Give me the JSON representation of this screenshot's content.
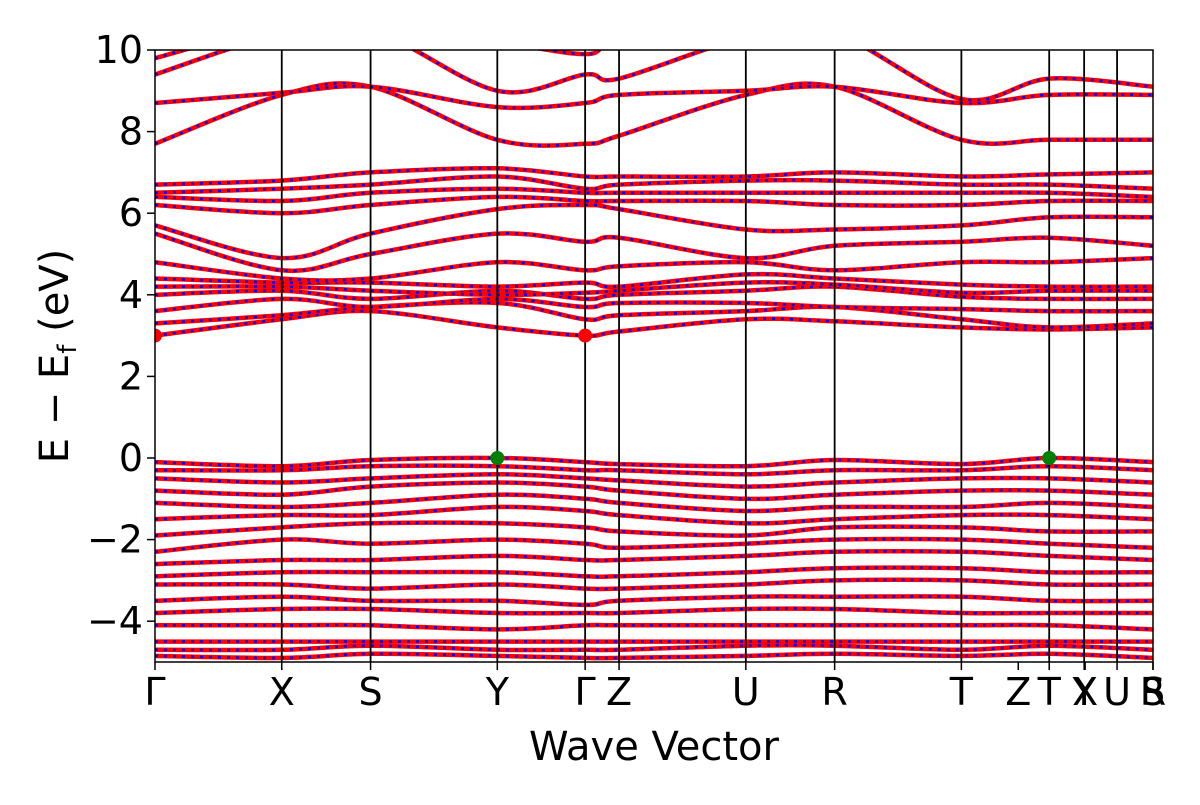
{
  "chart_data": {
    "type": "line",
    "title": "",
    "xlabel": "Wave Vector",
    "ylabel": "E − E",
    "ylabel_subscript": "f",
    "ylabel_unit": " (eV)",
    "ylim": [
      -5,
      10
    ],
    "yticks": [
      {
        "value": 10,
        "label": "10"
      },
      {
        "value": 8,
        "label": "8"
      },
      {
        "value": 6,
        "label": "6"
      },
      {
        "value": 4,
        "label": "4"
      },
      {
        "value": 2,
        "label": "2"
      },
      {
        "value": 0,
        "label": "0"
      },
      {
        "value": -2,
        "label": "−2"
      },
      {
        "value": -4,
        "label": "−4"
      }
    ],
    "grid": false,
    "xlim": [
      0,
      1
    ],
    "kpoints": [
      {
        "label": "Γ",
        "pos": 0.0
      },
      {
        "label": "X",
        "pos": 0.127
      },
      {
        "label": "S",
        "pos": 0.216
      },
      {
        "label": "Y",
        "pos": 0.343
      },
      {
        "label": "Γ",
        "pos": 0.431
      },
      {
        "label": "Z",
        "pos": 0.465
      },
      {
        "label": "U",
        "pos": 0.592
      },
      {
        "label": "R",
        "pos": 0.681
      },
      {
        "label": "T",
        "pos": 0.808
      },
      {
        "label": "Z",
        "pos": 0.865
      },
      {
        "label": "T",
        "pos": 0.896
      },
      {
        "label": "Y",
        "pos": 0.931
      },
      {
        "label": "X",
        "pos": 0.932
      },
      {
        "label": "U",
        "pos": 0.964
      },
      {
        "label": "S",
        "pos": 1.0
      },
      {
        "label": "R",
        "pos": 1.0
      }
    ],
    "tick_lines": [
      0.127,
      0.216,
      0.343,
      0.431,
      0.465,
      0.592,
      0.681,
      0.808,
      0.896,
      0.931,
      0.964
    ],
    "breaks": [
      0.896,
      0.931,
      0.964
    ],
    "band_style": {
      "line_color": "#ff0000",
      "dash_color": "#0000ff"
    },
    "bands_up_anchors": [
      {
        "id": "c1",
        "x": [
          0,
          0.127,
          0.216,
          0.343,
          0.431,
          0.465,
          0.592,
          0.681,
          0.808,
          0.896,
          1.0
        ],
        "y": [
          3.0,
          3.4,
          3.6,
          3.2,
          3.0,
          3.1,
          3.4,
          3.35,
          3.2,
          3.15,
          3.2
        ]
      },
      {
        "id": "c2",
        "x": [
          0,
          0.127,
          0.216,
          0.343,
          0.431,
          0.465,
          0.592,
          0.681,
          0.808,
          0.896,
          1.0
        ],
        "y": [
          3.3,
          3.5,
          3.7,
          3.8,
          3.4,
          3.5,
          3.6,
          3.7,
          3.4,
          3.2,
          3.3
        ]
      },
      {
        "id": "c3",
        "x": [
          0,
          0.127,
          0.216,
          0.343,
          0.431,
          0.465,
          0.592,
          0.681,
          0.808,
          0.896,
          1.0
        ],
        "y": [
          3.6,
          3.9,
          3.7,
          3.9,
          3.7,
          3.8,
          3.8,
          3.7,
          3.65,
          3.6,
          3.6
        ]
      },
      {
        "id": "c4",
        "x": [
          0,
          0.127,
          0.216,
          0.343,
          0.431,
          0.465,
          0.592,
          0.681,
          0.808,
          0.896,
          1.0
        ],
        "y": [
          4.0,
          4.1,
          3.9,
          4.1,
          3.9,
          4.0,
          4.1,
          4.2,
          3.95,
          3.9,
          3.9
        ]
      },
      {
        "id": "c5",
        "x": [
          0,
          0.127,
          0.216,
          0.343,
          0.431,
          0.465,
          0.592,
          0.681,
          0.808,
          0.896,
          1.0
        ],
        "y": [
          4.2,
          4.2,
          4.1,
          4.0,
          4.05,
          4.1,
          4.3,
          4.25,
          4.05,
          4.1,
          4.1
        ]
      },
      {
        "id": "c6",
        "x": [
          0,
          0.127,
          0.216,
          0.343,
          0.431,
          0.465,
          0.592,
          0.681,
          0.808,
          0.896,
          1.0
        ],
        "y": [
          4.4,
          4.3,
          4.3,
          4.2,
          4.3,
          4.2,
          4.5,
          4.4,
          4.25,
          4.2,
          4.2
        ]
      },
      {
        "id": "c7",
        "x": [
          0,
          0.127,
          0.216,
          0.343,
          0.431,
          0.465,
          0.592,
          0.681,
          0.808,
          0.896,
          1.0
        ],
        "y": [
          4.8,
          4.4,
          4.4,
          4.8,
          4.6,
          4.7,
          4.8,
          4.6,
          4.8,
          4.8,
          4.9
        ]
      },
      {
        "id": "c8",
        "x": [
          0,
          0.127,
          0.216,
          0.343,
          0.431,
          0.465,
          0.592,
          0.681,
          0.808,
          0.896,
          1.0
        ],
        "y": [
          5.5,
          4.6,
          5.0,
          5.5,
          5.3,
          5.4,
          4.9,
          5.2,
          5.3,
          5.4,
          5.2
        ]
      },
      {
        "id": "c9",
        "x": [
          0,
          0.127,
          0.216,
          0.343,
          0.431,
          0.465,
          0.592,
          0.681,
          0.808,
          0.896,
          1.0
        ],
        "y": [
          5.7,
          4.9,
          5.5,
          6.1,
          6.2,
          6.1,
          5.6,
          5.6,
          5.7,
          5.9,
          5.9
        ]
      },
      {
        "id": "c10",
        "x": [
          0,
          0.127,
          0.216,
          0.343,
          0.431,
          0.465,
          0.592,
          0.681,
          0.808,
          0.896,
          1.0
        ],
        "y": [
          6.2,
          6.0,
          6.2,
          6.4,
          6.3,
          6.3,
          6.3,
          6.2,
          6.2,
          6.3,
          6.3
        ]
      },
      {
        "id": "c11",
        "x": [
          0,
          0.127,
          0.216,
          0.343,
          0.431,
          0.465,
          0.592,
          0.681,
          0.808,
          0.896,
          1.0
        ],
        "y": [
          6.4,
          6.3,
          6.5,
          6.6,
          6.5,
          6.5,
          6.5,
          6.5,
          6.5,
          6.5,
          6.4
        ]
      },
      {
        "id": "c12",
        "x": [
          0,
          0.127,
          0.216,
          0.343,
          0.431,
          0.465,
          0.592,
          0.681,
          0.808,
          0.896,
          1.0
        ],
        "y": [
          6.5,
          6.6,
          6.7,
          6.9,
          6.6,
          6.7,
          6.8,
          6.8,
          6.7,
          6.7,
          6.6
        ]
      },
      {
        "id": "c13",
        "x": [
          0,
          0.127,
          0.216,
          0.343,
          0.431,
          0.465,
          0.592,
          0.681,
          0.808,
          0.896,
          1.0
        ],
        "y": [
          6.7,
          6.8,
          7.0,
          7.1,
          6.9,
          6.9,
          6.9,
          7.0,
          6.9,
          6.95,
          7.0
        ]
      },
      {
        "id": "c14",
        "x": [
          0,
          0.127,
          0.216,
          0.343,
          0.431,
          0.465,
          0.592,
          0.681,
          0.808,
          0.896,
          1.0
        ],
        "y": [
          7.7,
          8.9,
          9.1,
          7.8,
          7.7,
          7.9,
          8.9,
          9.1,
          7.8,
          7.8,
          7.8
        ]
      },
      {
        "id": "c15",
        "x": [
          0,
          0.127,
          0.216,
          0.343,
          0.431,
          0.465,
          0.592,
          0.681,
          0.808,
          0.896,
          1.0
        ],
        "y": [
          8.7,
          8.95,
          9.1,
          8.6,
          8.7,
          8.9,
          9.0,
          9.1,
          8.7,
          8.9,
          8.9
        ]
      },
      {
        "id": "c16",
        "x": [
          0,
          0.127,
          0.216,
          0.343,
          0.431,
          0.465,
          0.592,
          0.681,
          0.808,
          0.896,
          1.0
        ],
        "y": [
          9.4,
          10.4,
          10.5,
          9.0,
          9.4,
          9.3,
          10.3,
          10.4,
          8.8,
          9.3,
          9.1
        ]
      },
      {
        "id": "c17",
        "x": [
          0,
          0.127,
          0.216,
          0.343,
          0.431,
          0.465,
          0.592,
          0.681,
          0.808,
          0.896,
          1.0
        ],
        "y": [
          9.8,
          10.6,
          10.6,
          10.2,
          9.9,
          10.2,
          10.5,
          10.5,
          10.3,
          10.4,
          10.3
        ]
      }
    ],
    "bands_down_anchors": [
      {
        "id": "v1",
        "x": [
          0,
          0.127,
          0.216,
          0.343,
          0.431,
          0.465,
          0.592,
          0.681,
          0.808,
          0.896,
          1.0
        ],
        "y": [
          -0.1,
          -0.2,
          -0.05,
          0.0,
          -0.1,
          -0.15,
          -0.2,
          -0.05,
          -0.15,
          0.0,
          -0.1
        ]
      },
      {
        "id": "v2",
        "x": [
          0,
          0.127,
          0.216,
          0.343,
          0.431,
          0.465,
          0.592,
          0.681,
          0.808,
          0.896,
          1.0
        ],
        "y": [
          -0.3,
          -0.3,
          -0.2,
          -0.2,
          -0.3,
          -0.3,
          -0.4,
          -0.3,
          -0.3,
          -0.2,
          -0.3
        ]
      },
      {
        "id": "v3",
        "x": [
          0,
          0.127,
          0.216,
          0.343,
          0.431,
          0.465,
          0.592,
          0.681,
          0.808,
          0.896,
          1.0
        ],
        "y": [
          -0.5,
          -0.6,
          -0.5,
          -0.4,
          -0.5,
          -0.55,
          -0.7,
          -0.6,
          -0.5,
          -0.5,
          -0.6
        ]
      },
      {
        "id": "v4",
        "x": [
          0,
          0.127,
          0.216,
          0.343,
          0.431,
          0.465,
          0.592,
          0.681,
          0.808,
          0.896,
          1.0
        ],
        "y": [
          -0.8,
          -0.9,
          -0.7,
          -0.6,
          -0.7,
          -0.8,
          -1.0,
          -0.9,
          -0.8,
          -0.8,
          -0.9
        ]
      },
      {
        "id": "v5",
        "x": [
          0,
          0.127,
          0.216,
          0.343,
          0.431,
          0.465,
          0.592,
          0.681,
          0.808,
          0.896,
          1.0
        ],
        "y": [
          -1.1,
          -1.2,
          -1.1,
          -0.9,
          -1.0,
          -1.1,
          -1.3,
          -1.2,
          -1.2,
          -1.1,
          -1.2
        ]
      },
      {
        "id": "v6",
        "x": [
          0,
          0.127,
          0.216,
          0.343,
          0.431,
          0.465,
          0.592,
          0.681,
          0.808,
          0.896,
          1.0
        ],
        "y": [
          -1.5,
          -1.4,
          -1.4,
          -1.2,
          -1.3,
          -1.4,
          -1.6,
          -1.5,
          -1.4,
          -1.4,
          -1.5
        ]
      },
      {
        "id": "v7",
        "x": [
          0,
          0.127,
          0.216,
          0.343,
          0.431,
          0.465,
          0.592,
          0.681,
          0.808,
          0.896,
          1.0
        ],
        "y": [
          -1.9,
          -1.7,
          -1.6,
          -1.6,
          -1.7,
          -1.8,
          -1.9,
          -1.7,
          -1.7,
          -1.8,
          -1.8
        ]
      },
      {
        "id": "v8",
        "x": [
          0,
          0.127,
          0.216,
          0.343,
          0.431,
          0.465,
          0.592,
          0.681,
          0.808,
          0.896,
          1.0
        ],
        "y": [
          -2.3,
          -2.0,
          -2.1,
          -2.0,
          -2.1,
          -2.2,
          -2.1,
          -2.0,
          -2.0,
          -2.1,
          -2.2
        ]
      },
      {
        "id": "v9",
        "x": [
          0,
          0.127,
          0.216,
          0.343,
          0.431,
          0.465,
          0.592,
          0.681,
          0.808,
          0.896,
          1.0
        ],
        "y": [
          -2.6,
          -2.5,
          -2.5,
          -2.4,
          -2.5,
          -2.5,
          -2.4,
          -2.3,
          -2.3,
          -2.4,
          -2.5
        ]
      },
      {
        "id": "v10",
        "x": [
          0,
          0.127,
          0.216,
          0.343,
          0.431,
          0.465,
          0.592,
          0.681,
          0.808,
          0.896,
          1.0
        ],
        "y": [
          -2.9,
          -2.8,
          -2.8,
          -2.8,
          -2.9,
          -2.9,
          -2.8,
          -2.7,
          -2.7,
          -2.8,
          -2.8
        ]
      },
      {
        "id": "v11",
        "x": [
          0,
          0.127,
          0.216,
          0.343,
          0.431,
          0.465,
          0.592,
          0.681,
          0.808,
          0.896,
          1.0
        ],
        "y": [
          -3.1,
          -3.1,
          -3.2,
          -3.1,
          -3.2,
          -3.2,
          -3.1,
          -3.0,
          -3.0,
          -3.1,
          -3.1
        ]
      },
      {
        "id": "v12",
        "x": [
          0,
          0.127,
          0.216,
          0.343,
          0.431,
          0.465,
          0.592,
          0.681,
          0.808,
          0.896,
          1.0
        ],
        "y": [
          -3.5,
          -3.4,
          -3.5,
          -3.5,
          -3.6,
          -3.5,
          -3.4,
          -3.4,
          -3.4,
          -3.5,
          -3.5
        ]
      },
      {
        "id": "v13",
        "x": [
          0,
          0.127,
          0.216,
          0.343,
          0.431,
          0.465,
          0.592,
          0.681,
          0.808,
          0.896,
          1.0
        ],
        "y": [
          -3.8,
          -3.7,
          -3.7,
          -3.8,
          -3.8,
          -3.8,
          -3.7,
          -3.7,
          -3.8,
          -3.8,
          -3.8
        ]
      },
      {
        "id": "v14",
        "x": [
          0,
          0.127,
          0.216,
          0.343,
          0.431,
          0.465,
          0.592,
          0.681,
          0.808,
          0.896,
          1.0
        ],
        "y": [
          -4.1,
          -4.1,
          -4.1,
          -4.2,
          -4.1,
          -4.1,
          -4.1,
          -4.1,
          -4.1,
          -4.1,
          -4.2
        ]
      },
      {
        "id": "v15",
        "x": [
          0,
          0.127,
          0.216,
          0.343,
          0.431,
          0.465,
          0.592,
          0.681,
          0.808,
          0.896,
          1.0
        ],
        "y": [
          -4.5,
          -4.5,
          -4.5,
          -4.5,
          -4.5,
          -4.5,
          -4.5,
          -4.5,
          -4.5,
          -4.5,
          -4.5
        ]
      },
      {
        "id": "v16",
        "x": [
          0,
          0.127,
          0.216,
          0.343,
          0.431,
          0.465,
          0.592,
          0.681,
          0.808,
          0.896,
          1.0
        ],
        "y": [
          -4.7,
          -4.7,
          -4.6,
          -4.7,
          -4.7,
          -4.7,
          -4.6,
          -4.6,
          -4.7,
          -4.6,
          -4.7
        ]
      },
      {
        "id": "v17",
        "x": [
          0,
          0.127,
          0.216,
          0.343,
          0.431,
          0.465,
          0.592,
          0.681,
          0.808,
          0.896,
          1.0
        ],
        "y": [
          -4.85,
          -4.9,
          -4.8,
          -4.85,
          -4.9,
          -4.9,
          -4.85,
          -4.8,
          -4.85,
          -4.8,
          -4.9
        ]
      }
    ],
    "markers": [
      {
        "name": "CBM",
        "x": 0.0,
        "y": 3.0,
        "color": "#ff0000"
      },
      {
        "name": "CBM",
        "x": 0.431,
        "y": 3.0,
        "color": "#ff0000"
      },
      {
        "name": "VBM",
        "x": 0.343,
        "y": 0.0,
        "color": "#008000"
      },
      {
        "name": "VBM",
        "x": 0.896,
        "y": 0.0,
        "color": "#008000"
      }
    ]
  }
}
